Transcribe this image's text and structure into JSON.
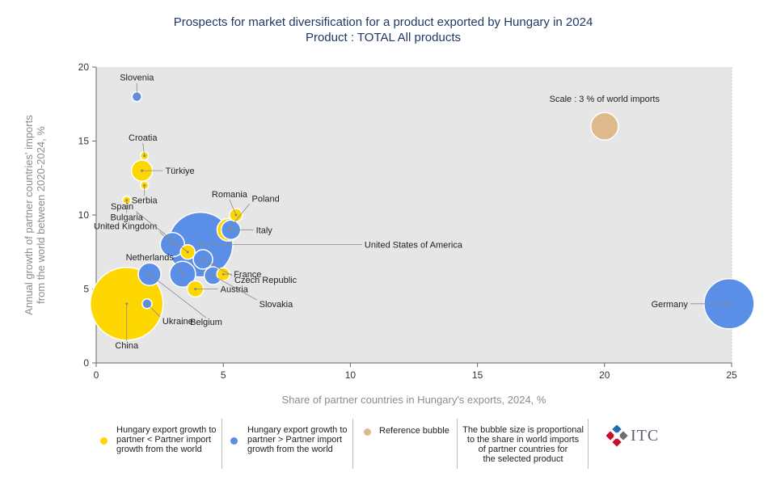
{
  "chart_data": {
    "type": "scatter",
    "title": "Prospects for market diversification for a product exported by Hungary in 2024",
    "subtitle": "Product : TOTAL All products",
    "xlabel": "Share of partner countries in Hungary's exports, 2024, %",
    "ylabel_line1": "Annual growth of partner countries' imports",
    "ylabel_line2": "from the world between 2020-2024, %",
    "xlim": [
      0,
      25
    ],
    "ylim": [
      0,
      20
    ],
    "x_ticks": [
      "0",
      "5",
      "10",
      "15",
      "20",
      "25"
    ],
    "y_ticks": [
      "0",
      "5",
      "10",
      "15",
      "20"
    ],
    "grid": false,
    "colors": {
      "yellow": "#ffd700",
      "blue": "#5b8ee6",
      "reference": "#ddb98b",
      "plot_bg": "#e6e6e6"
    },
    "points": [
      {
        "name": "China",
        "x": 1.2,
        "y": 4.0,
        "group": "yellow",
        "size": 45
      },
      {
        "name": "United States of America",
        "x": 4.1,
        "y": 8.0,
        "group": "blue",
        "size": 40
      },
      {
        "name": "Germany",
        "x": 24.9,
        "y": 4.0,
        "group": "blue",
        "size": 31
      },
      {
        "name": "United Kingdom",
        "x": 3.0,
        "y": 8.0,
        "group": "blue",
        "size": 15
      },
      {
        "name": "Netherlands",
        "x": 3.4,
        "y": 6.0,
        "group": "blue",
        "size": 16
      },
      {
        "name": "Belgium",
        "x": 2.1,
        "y": 6.0,
        "group": "blue",
        "size": 14
      },
      {
        "name": "Czech Republic",
        "x": 4.2,
        "y": 7.0,
        "group": "blue",
        "size": 12
      },
      {
        "name": "Slovakia",
        "x": 4.6,
        "y": 5.9,
        "group": "blue",
        "size": 11
      },
      {
        "name": "Italy",
        "x": 5.3,
        "y": 9.0,
        "group": "blue",
        "size": 12
      },
      {
        "name": "Poland",
        "x": 5.2,
        "y": 9.0,
        "group": "yellow",
        "size": 14
      },
      {
        "name": "Romania",
        "x": 5.5,
        "y": 10.0,
        "group": "yellow",
        "size": 8
      },
      {
        "name": "France",
        "x": 5.0,
        "y": 6.0,
        "group": "yellow",
        "size": 8
      },
      {
        "name": "Austria",
        "x": 3.9,
        "y": 5.0,
        "group": "yellow",
        "size": 10
      },
      {
        "name": "Spain",
        "x": 3.6,
        "y": 7.5,
        "group": "yellow",
        "size": 9
      },
      {
        "name": "Türkiye",
        "x": 1.8,
        "y": 13.0,
        "group": "yellow",
        "size": 13
      },
      {
        "name": "Croatia",
        "x": 1.9,
        "y": 14.0,
        "group": "yellow",
        "size": 5
      },
      {
        "name": "Serbia",
        "x": 1.9,
        "y": 12.0,
        "group": "yellow",
        "size": 5
      },
      {
        "name": "Bulgaria",
        "x": 1.2,
        "y": 11.0,
        "group": "yellow",
        "size": 5
      },
      {
        "name": "Slovenia",
        "x": 1.6,
        "y": 18.0,
        "group": "blue",
        "size": 6
      },
      {
        "name": "Ukraine",
        "x": 2.0,
        "y": 4.0,
        "group": "blue",
        "size": 6
      }
    ],
    "reference_bubble": {
      "label": "Scale : 3 % of world imports",
      "x": 20.0,
      "y": 16.0,
      "size": 17
    }
  },
  "legend": {
    "item1": [
      "Hungary export growth to",
      "partner < Partner import",
      "growth from the world"
    ],
    "item2": [
      "Hungary export growth to",
      "partner > Partner import",
      "growth from the world"
    ],
    "item3": "Reference bubble",
    "item4": [
      "The bubble size is proportional",
      "to the share in world imports",
      "of partner countries for",
      "the selected product"
    ]
  },
  "logo": {
    "text": "ITC"
  }
}
